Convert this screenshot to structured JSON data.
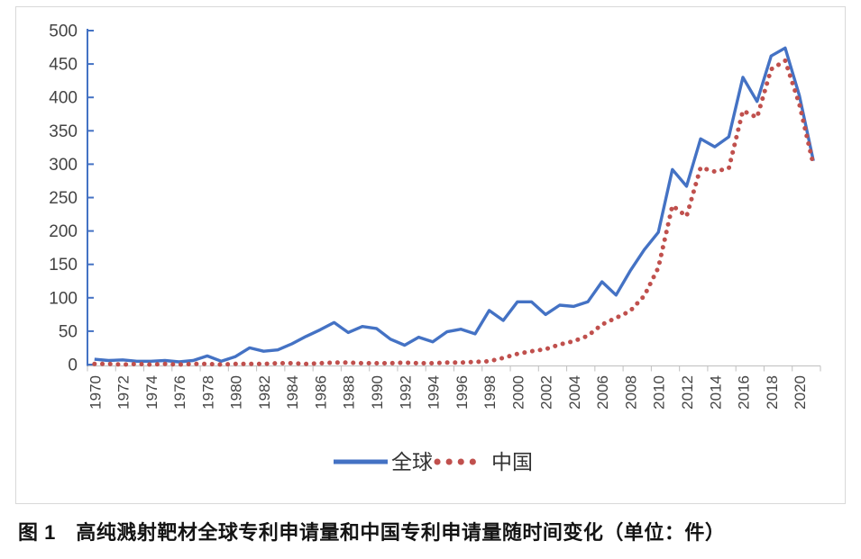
{
  "figure": {
    "caption": "图 1　高纯溅射靶材全球专利申请量和中国专利申请量随时间变化（单位：件）"
  },
  "chart_data": {
    "type": "line",
    "x": [
      1970,
      1971,
      1972,
      1973,
      1974,
      1975,
      1976,
      1977,
      1978,
      1979,
      1980,
      1981,
      1982,
      1983,
      1984,
      1985,
      1986,
      1987,
      1988,
      1989,
      1990,
      1991,
      1992,
      1993,
      1994,
      1995,
      1996,
      1997,
      1998,
      1999,
      2000,
      2001,
      2002,
      2003,
      2004,
      2005,
      2006,
      2007,
      2008,
      2009,
      2010,
      2011,
      2012,
      2013,
      2014,
      2015,
      2016,
      2017,
      2018,
      2019,
      2020,
      2021
    ],
    "series": [
      {
        "name": "全球",
        "style": "solid",
        "color": "#4472C4",
        "values": [
          8,
          6,
          7,
          5,
          5,
          6,
          4,
          6,
          13,
          5,
          12,
          25,
          20,
          22,
          31,
          42,
          52,
          63,
          48,
          57,
          54,
          38,
          29,
          41,
          34,
          49,
          53,
          46,
          81,
          66,
          94,
          94,
          75,
          89,
          87,
          94,
          124,
          104,
          140,
          172,
          198,
          292,
          267,
          338,
          326,
          341,
          430,
          394,
          462,
          474,
          403,
          305
        ]
      },
      {
        "name": "中国",
        "style": "dotted",
        "color": "#C0504D",
        "values": [
          1,
          1,
          0,
          1,
          0,
          1,
          0,
          1,
          1,
          0,
          1,
          1,
          1,
          2,
          2,
          1,
          2,
          3,
          3,
          2,
          2,
          2,
          3,
          2,
          2,
          3,
          3,
          4,
          5,
          10,
          16,
          20,
          23,
          30,
          35,
          43,
          60,
          70,
          80,
          103,
          145,
          238,
          222,
          295,
          289,
          294,
          380,
          370,
          442,
          455,
          390,
          299
        ]
      }
    ],
    "title": "",
    "xlabel": "",
    "ylabel": "",
    "ylim": [
      0,
      500
    ],
    "ytick_step": 50,
    "x_label_every_n_years": 2,
    "x_labels_rotated_degrees": 90,
    "legend_position": "bottom-center",
    "grid": false,
    "axis_style": {
      "y_axis_color": "#4472C4",
      "x_axis_color": "#c6c6c6",
      "x_tick_color": "#bfbfbf",
      "tick_label_color": "#444444"
    },
    "unit": "件"
  }
}
